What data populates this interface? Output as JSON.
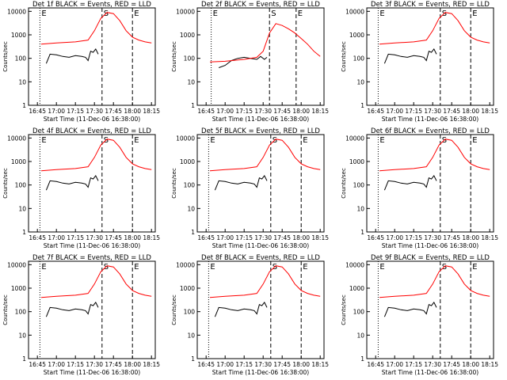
{
  "figure": {
    "background": "#ffffff",
    "colors": {
      "events": "#000000",
      "lld": "#ff0000",
      "axes": "#000000"
    }
  },
  "chart_data": [
    {
      "type": "line",
      "title": "Det 1f  BLACK = Events, RED = LLD",
      "xlabel": "Start Time (11-Dec-06 16:38:00)",
      "ylabel": "Counts/sec",
      "x_ticks": [
        "16:45",
        "17:00",
        "17:15",
        "17:30",
        "17:45",
        "18:00",
        "18:15"
      ],
      "y_ticks": [
        "1",
        "10",
        "100",
        "1000",
        "10000"
      ],
      "ylog": true,
      "ylim": [
        1,
        14000
      ],
      "markers": [
        {
          "label": "E",
          "time": "16:47"
        },
        {
          "label": "S",
          "time": "17:36"
        },
        {
          "label": "E",
          "time": "18:00"
        }
      ],
      "series": [
        {
          "name": "BLACK = Events",
          "color": "#000000",
          "x": [
            "16:52",
            "16:55",
            "17:00",
            "17:05",
            "17:10",
            "17:15",
            "17:20",
            "17:23",
            "17:25",
            "17:27",
            "17:29",
            "17:31",
            "17:33"
          ],
          "y": [
            60,
            150,
            140,
            120,
            110,
            130,
            120,
            110,
            80,
            200,
            180,
            250,
            150
          ]
        },
        {
          "name": "RED = LLD",
          "color": "#ff0000",
          "x": [
            "16:48",
            "17:00",
            "17:15",
            "17:25",
            "17:30",
            "17:35",
            "17:40",
            "17:45",
            "17:50",
            "17:55",
            "18:00",
            "18:05",
            "18:10",
            "18:15"
          ],
          "y": [
            400,
            450,
            500,
            600,
            1500,
            5000,
            9000,
            8000,
            4000,
            1500,
            800,
            600,
            500,
            450
          ]
        }
      ]
    },
    {
      "type": "line",
      "title": "Det 2f  BLACK = Events, RED = LLD",
      "xlabel": "Start Time (11-Dec-06 16:38:00)",
      "ylabel": "Counts/sec",
      "x_ticks": [
        "16:45",
        "17:00",
        "17:15",
        "17:30",
        "17:45",
        "18:00",
        "18:15"
      ],
      "y_ticks": [
        "1",
        "10",
        "100",
        "1000",
        "10000"
      ],
      "ylog": true,
      "ylim": [
        1,
        14000
      ],
      "markers": [
        {
          "label": "E",
          "time": "16:49"
        },
        {
          "label": "S",
          "time": "17:35"
        },
        {
          "label": "E",
          "time": "17:56"
        }
      ],
      "series": [
        {
          "name": "BLACK = Events",
          "color": "#000000",
          "x": [
            "16:55",
            "17:00",
            "17:05",
            "17:10",
            "17:15",
            "17:20",
            "17:25",
            "17:28",
            "17:31",
            "17:33"
          ],
          "y": [
            40,
            50,
            80,
            100,
            110,
            100,
            90,
            120,
            90,
            110
          ]
        },
        {
          "name": "RED = LLD",
          "color": "#ff0000",
          "x": [
            "16:48",
            "17:00",
            "17:15",
            "17:25",
            "17:30",
            "17:35",
            "17:40",
            "17:45",
            "17:50",
            "17:55",
            "18:00",
            "18:05",
            "18:10",
            "18:15"
          ],
          "y": [
            70,
            75,
            90,
            110,
            200,
            1200,
            3000,
            2500,
            1800,
            1200,
            700,
            400,
            200,
            120
          ]
        }
      ]
    },
    {
      "type": "line",
      "title": "Det 3f  BLACK = Events, RED = LLD",
      "xlabel": "Start Time (11-Dec-06 16:38:00)",
      "ylabel": "Counts/sec",
      "x_ticks": [
        "16:45",
        "17:00",
        "17:15",
        "17:30",
        "17:45",
        "18:00",
        "18:15"
      ],
      "y_ticks": [
        "1",
        "10",
        "100",
        "1000",
        "10000"
      ],
      "ylog": true,
      "ylim": [
        1,
        14000
      ],
      "markers": [
        {
          "label": "E",
          "time": "16:47"
        },
        {
          "label": "S",
          "time": "17:36"
        },
        {
          "label": "E",
          "time": "18:00"
        }
      ],
      "series": [
        {
          "name": "BLACK = Events",
          "color": "#000000",
          "x": [
            "16:52",
            "16:55",
            "17:00",
            "17:05",
            "17:10",
            "17:15",
            "17:20",
            "17:23",
            "17:25",
            "17:27",
            "17:29",
            "17:31",
            "17:33"
          ],
          "y": [
            60,
            150,
            140,
            120,
            110,
            130,
            120,
            110,
            80,
            200,
            180,
            250,
            150
          ]
        },
        {
          "name": "RED = LLD",
          "color": "#ff0000",
          "x": [
            "16:48",
            "17:00",
            "17:15",
            "17:25",
            "17:30",
            "17:35",
            "17:40",
            "17:45",
            "17:50",
            "17:55",
            "18:00",
            "18:05",
            "18:10",
            "18:15"
          ],
          "y": [
            400,
            450,
            500,
            600,
            1500,
            5000,
            9000,
            8000,
            4000,
            1500,
            800,
            600,
            500,
            450
          ]
        }
      ]
    },
    {
      "type": "line",
      "title": "Det 4f  BLACK = Events, RED = LLD",
      "xlabel": "Start Time (11-Dec-06 16:38:00)",
      "ylabel": "Counts/sec",
      "x_ticks": [
        "16:45",
        "17:00",
        "17:15",
        "17:30",
        "17:45",
        "18:00",
        "18:15"
      ],
      "y_ticks": [
        "1",
        "10",
        "100",
        "1000",
        "10000"
      ],
      "ylog": true,
      "ylim": [
        1,
        14000
      ],
      "markers": [
        {
          "label": "E",
          "time": "16:47"
        },
        {
          "label": "S",
          "time": "17:36"
        },
        {
          "label": "E",
          "time": "18:00"
        }
      ],
      "series": [
        {
          "name": "BLACK = Events",
          "color": "#000000",
          "x": [
            "16:52",
            "16:55",
            "17:00",
            "17:05",
            "17:10",
            "17:15",
            "17:20",
            "17:23",
            "17:25",
            "17:27",
            "17:29",
            "17:31",
            "17:33"
          ],
          "y": [
            60,
            150,
            140,
            120,
            110,
            130,
            120,
            110,
            80,
            200,
            180,
            250,
            150
          ]
        },
        {
          "name": "RED = LLD",
          "color": "#ff0000",
          "x": [
            "16:48",
            "17:00",
            "17:15",
            "17:25",
            "17:30",
            "17:35",
            "17:40",
            "17:45",
            "17:50",
            "17:55",
            "18:00",
            "18:05",
            "18:10",
            "18:15"
          ],
          "y": [
            400,
            450,
            500,
            600,
            1500,
            5000,
            9000,
            8000,
            4000,
            1500,
            800,
            600,
            500,
            450
          ]
        }
      ]
    },
    {
      "type": "line",
      "title": "Det 5f  BLACK = Events, RED = LLD",
      "xlabel": "Start Time (11-Dec-06 16:38:00)",
      "ylabel": "Counts/sec",
      "x_ticks": [
        "16:45",
        "17:00",
        "17:15",
        "17:30",
        "17:45",
        "18:00",
        "18:15"
      ],
      "y_ticks": [
        "1",
        "10",
        "100",
        "1000",
        "10000"
      ],
      "ylog": true,
      "ylim": [
        1,
        14000
      ],
      "markers": [
        {
          "label": "E",
          "time": "16:47"
        },
        {
          "label": "S",
          "time": "17:36"
        },
        {
          "label": "E",
          "time": "18:00"
        }
      ],
      "series": [
        {
          "name": "BLACK = Events",
          "color": "#000000",
          "x": [
            "16:52",
            "16:55",
            "17:00",
            "17:05",
            "17:10",
            "17:15",
            "17:20",
            "17:23",
            "17:25",
            "17:27",
            "17:29",
            "17:31",
            "17:33"
          ],
          "y": [
            60,
            150,
            140,
            120,
            110,
            130,
            120,
            110,
            80,
            200,
            180,
            250,
            150
          ]
        },
        {
          "name": "RED = LLD",
          "color": "#ff0000",
          "x": [
            "16:48",
            "17:00",
            "17:15",
            "17:25",
            "17:30",
            "17:35",
            "17:40",
            "17:45",
            "17:50",
            "17:55",
            "18:00",
            "18:05",
            "18:10",
            "18:15"
          ],
          "y": [
            400,
            450,
            500,
            600,
            1500,
            5000,
            9000,
            8000,
            4000,
            1500,
            800,
            600,
            500,
            450
          ]
        }
      ]
    },
    {
      "type": "line",
      "title": "Det 6f  BLACK = Events, RED = LLD",
      "xlabel": "Start Time (11-Dec-06 16:38:00)",
      "ylabel": "Counts/sec",
      "x_ticks": [
        "16:45",
        "17:00",
        "17:15",
        "17:30",
        "17:45",
        "18:00",
        "18:15"
      ],
      "y_ticks": [
        "1",
        "10",
        "100",
        "1000",
        "10000"
      ],
      "ylog": true,
      "ylim": [
        1,
        14000
      ],
      "markers": [
        {
          "label": "E",
          "time": "16:47"
        },
        {
          "label": "S",
          "time": "17:36"
        },
        {
          "label": "E",
          "time": "18:00"
        }
      ],
      "series": [
        {
          "name": "BLACK = Events",
          "color": "#000000",
          "x": [
            "16:52",
            "16:55",
            "17:00",
            "17:05",
            "17:10",
            "17:15",
            "17:20",
            "17:23",
            "17:25",
            "17:27",
            "17:29",
            "17:31",
            "17:33"
          ],
          "y": [
            60,
            150,
            140,
            120,
            110,
            130,
            120,
            110,
            80,
            200,
            180,
            250,
            150
          ]
        },
        {
          "name": "RED = LLD",
          "color": "#ff0000",
          "x": [
            "16:48",
            "17:00",
            "17:15",
            "17:25",
            "17:30",
            "17:35",
            "17:40",
            "17:45",
            "17:50",
            "17:55",
            "18:00",
            "18:05",
            "18:10",
            "18:15"
          ],
          "y": [
            400,
            450,
            500,
            600,
            1500,
            5000,
            9000,
            8000,
            4000,
            1500,
            800,
            600,
            500,
            450
          ]
        }
      ]
    },
    {
      "type": "line",
      "title": "Det 7f  BLACK = Events, RED = LLD",
      "xlabel": "Start Time (11-Dec-06 16:38:00)",
      "ylabel": "Counts/sec",
      "x_ticks": [
        "16:45",
        "17:00",
        "17:15",
        "17:30",
        "17:45",
        "18:00",
        "18:15"
      ],
      "y_ticks": [
        "1",
        "10",
        "100",
        "1000",
        "10000"
      ],
      "ylog": true,
      "ylim": [
        1,
        14000
      ],
      "markers": [
        {
          "label": "E",
          "time": "16:47"
        },
        {
          "label": "S",
          "time": "17:36"
        },
        {
          "label": "E",
          "time": "18:00"
        }
      ],
      "series": [
        {
          "name": "BLACK = Events",
          "color": "#000000",
          "x": [
            "16:52",
            "16:55",
            "17:00",
            "17:05",
            "17:10",
            "17:15",
            "17:20",
            "17:23",
            "17:25",
            "17:27",
            "17:29",
            "17:31",
            "17:33"
          ],
          "y": [
            60,
            150,
            140,
            120,
            110,
            130,
            120,
            110,
            80,
            200,
            180,
            250,
            150
          ]
        },
        {
          "name": "RED = LLD",
          "color": "#ff0000",
          "x": [
            "16:48",
            "17:00",
            "17:15",
            "17:25",
            "17:30",
            "17:35",
            "17:40",
            "17:45",
            "17:50",
            "17:55",
            "18:00",
            "18:05",
            "18:10",
            "18:15"
          ],
          "y": [
            400,
            450,
            500,
            600,
            1500,
            5000,
            9000,
            8000,
            4000,
            1500,
            800,
            600,
            500,
            450
          ]
        }
      ]
    },
    {
      "type": "line",
      "title": "Det 8f  BLACK = Events, RED = LLD",
      "xlabel": "Start Time (11-Dec-06 16:38:00)",
      "ylabel": "Counts/sec",
      "x_ticks": [
        "16:45",
        "17:00",
        "17:15",
        "17:30",
        "17:45",
        "18:00",
        "18:15"
      ],
      "y_ticks": [
        "1",
        "10",
        "100",
        "1000",
        "10000"
      ],
      "ylog": true,
      "ylim": [
        1,
        14000
      ],
      "markers": [
        {
          "label": "E",
          "time": "16:47"
        },
        {
          "label": "S",
          "time": "17:36"
        },
        {
          "label": "E",
          "time": "18:00"
        }
      ],
      "series": [
        {
          "name": "BLACK = Events",
          "color": "#000000",
          "x": [
            "16:52",
            "16:55",
            "17:00",
            "17:05",
            "17:10",
            "17:15",
            "17:20",
            "17:23",
            "17:25",
            "17:27",
            "17:29",
            "17:31",
            "17:33"
          ],
          "y": [
            60,
            150,
            140,
            120,
            110,
            130,
            120,
            110,
            80,
            200,
            180,
            250,
            150
          ]
        },
        {
          "name": "RED = LLD",
          "color": "#ff0000",
          "x": [
            "16:48",
            "17:00",
            "17:15",
            "17:25",
            "17:30",
            "17:35",
            "17:40",
            "17:45",
            "17:50",
            "17:55",
            "18:00",
            "18:05",
            "18:10",
            "18:15"
          ],
          "y": [
            400,
            450,
            500,
            600,
            1500,
            5000,
            9000,
            8000,
            4000,
            1500,
            800,
            600,
            500,
            450
          ]
        }
      ]
    },
    {
      "type": "line",
      "title": "Det 9f  BLACK = Events, RED = LLD",
      "xlabel": "Start Time (11-Dec-06 16:38:00)",
      "ylabel": "Counts/sec",
      "x_ticks": [
        "16:45",
        "17:00",
        "17:15",
        "17:30",
        "17:45",
        "18:00",
        "18:15"
      ],
      "y_ticks": [
        "1",
        "10",
        "100",
        "1000",
        "10000"
      ],
      "ylog": true,
      "ylim": [
        1,
        14000
      ],
      "markers": [
        {
          "label": "E",
          "time": "16:47"
        },
        {
          "label": "S",
          "time": "17:36"
        },
        {
          "label": "E",
          "time": "18:00"
        }
      ],
      "series": [
        {
          "name": "BLACK = Events",
          "color": "#000000",
          "x": [
            "16:52",
            "16:55",
            "17:00",
            "17:05",
            "17:10",
            "17:15",
            "17:20",
            "17:23",
            "17:25",
            "17:27",
            "17:29",
            "17:31",
            "17:33"
          ],
          "y": [
            60,
            150,
            140,
            120,
            110,
            130,
            120,
            110,
            80,
            200,
            180,
            250,
            150
          ]
        },
        {
          "name": "RED = LLD",
          "color": "#ff0000",
          "x": [
            "16:48",
            "17:00",
            "17:15",
            "17:25",
            "17:30",
            "17:35",
            "17:40",
            "17:45",
            "17:50",
            "17:55",
            "18:00",
            "18:05",
            "18:10",
            "18:15"
          ],
          "y": [
            400,
            450,
            500,
            600,
            1500,
            5000,
            9000,
            8000,
            4000,
            1500,
            800,
            600,
            500,
            450
          ]
        }
      ]
    }
  ]
}
